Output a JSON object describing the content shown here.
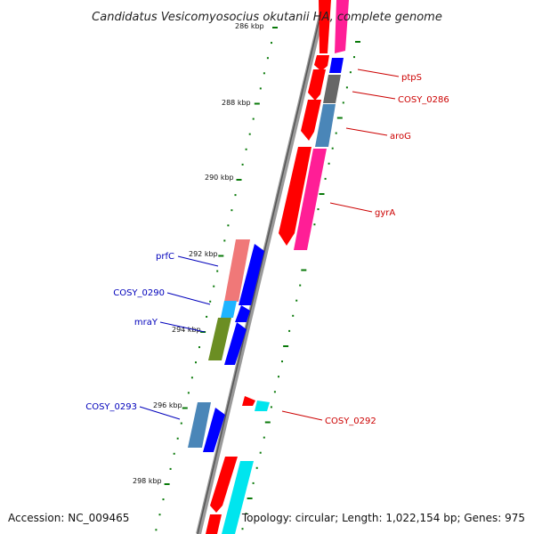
{
  "title": "Candidatus Vesicomyosocius okutanii HA, complete genome",
  "footer": {
    "accession": "Accession: NC_009465",
    "topology": "Topology: circular; Length: 1,022,154 bp; Genes: 975"
  },
  "ticks": [
    {
      "label": "286 kbp"
    },
    {
      "label": "288 kbp"
    },
    {
      "label": "290 kbp"
    },
    {
      "label": "292 kbp"
    },
    {
      "label": "294 kbp"
    },
    {
      "label": "296 kbp"
    },
    {
      "label": "298 kbp"
    }
  ],
  "gene_labels_right": [
    {
      "label": "ptpS",
      "color": "#cc0000"
    },
    {
      "label": "COSY_0286",
      "color": "#cc0000"
    },
    {
      "label": "aroG",
      "color": "#cc0000"
    },
    {
      "label": "gyrA",
      "color": "#cc0000"
    },
    {
      "label": "COSY_0292",
      "color": "#cc0000"
    }
  ],
  "gene_labels_left": [
    {
      "label": "prfC",
      "color": "#0000bb"
    },
    {
      "label": "COSY_0290",
      "color": "#0000bb"
    },
    {
      "label": "mraY",
      "color": "#0000bb"
    },
    {
      "label": "COSY_0293",
      "color": "#0000bb"
    }
  ],
  "colors": {
    "red": "#ff0000",
    "pink": "#ff1e96",
    "blue": "#0000ff",
    "gray": "#666666",
    "steel": "#4a86b8",
    "salmon": "#f07878",
    "skyblue": "#1eb4ff",
    "olive": "#6b8e23",
    "cyan": "#00e5ee",
    "tick": "#0a7a0a",
    "backbone": "#7a7a7a"
  }
}
